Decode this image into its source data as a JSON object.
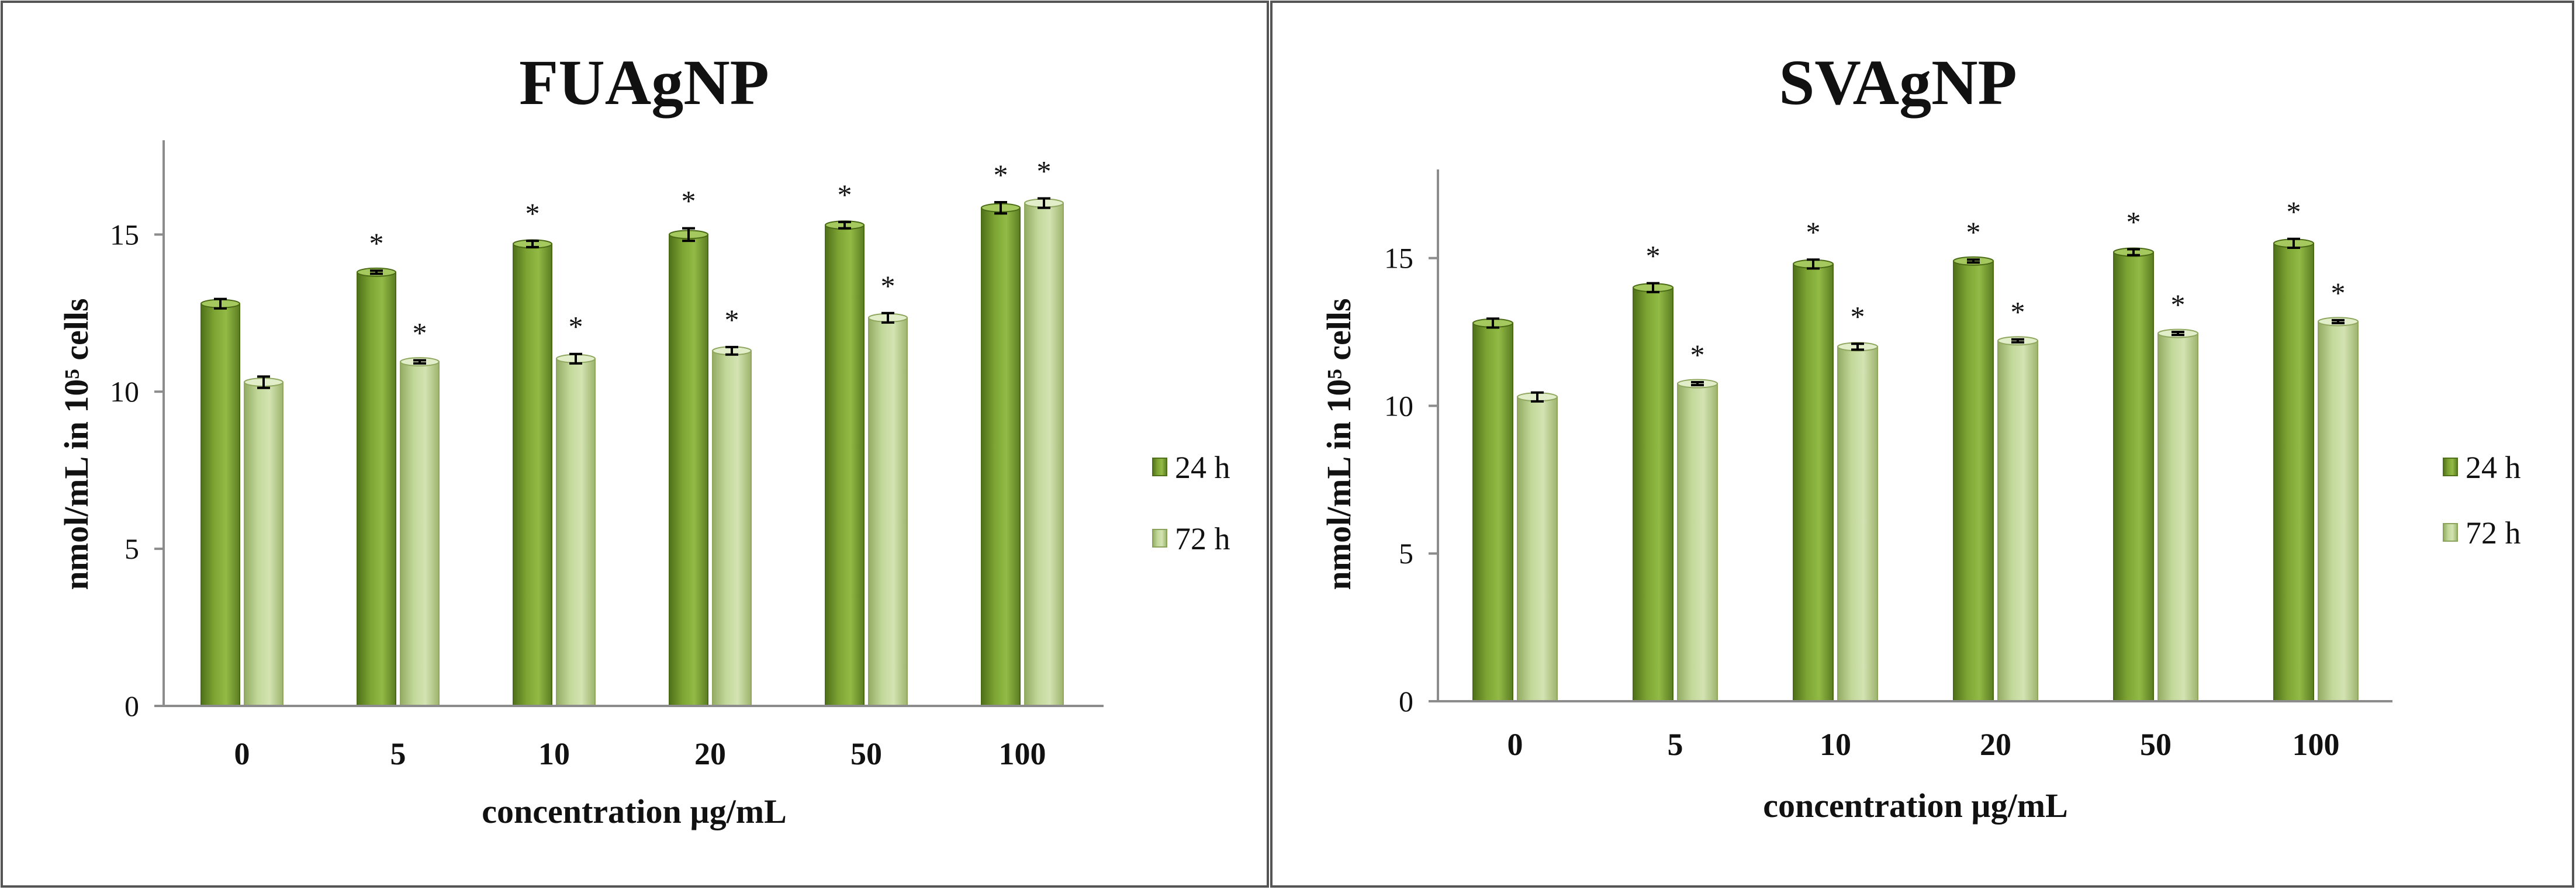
{
  "chart_data": [
    {
      "type": "bar",
      "title": "FUAgNP",
      "xlabel": "concentration µg/mL",
      "ylabel": "nmol/mL in 10⁵ cells",
      "categories": [
        "0",
        "5",
        "10",
        "20",
        "50",
        "100"
      ],
      "ylim": [
        0,
        18
      ],
      "yticks": [
        0,
        5,
        10,
        15
      ],
      "series": [
        {
          "name": "24 h",
          "values": [
            12.8,
            13.8,
            14.7,
            15.0,
            15.3,
            15.85
          ],
          "errors": [
            0.15,
            0.05,
            0.1,
            0.2,
            0.1,
            0.18
          ],
          "significance": [
            "",
            "*",
            "*",
            "*",
            "*",
            "*"
          ],
          "color": "#7fa437"
        },
        {
          "name": "72 h",
          "values": [
            10.3,
            10.95,
            11.05,
            11.3,
            12.35,
            16.0
          ],
          "errors": [
            0.18,
            0.05,
            0.15,
            0.12,
            0.15,
            0.15
          ],
          "significance": [
            "",
            "*",
            "*",
            "*",
            "*",
            "*"
          ],
          "color": "#b9cf8c"
        }
      ]
    },
    {
      "type": "bar",
      "title": "SVAgNP",
      "xlabel": "concentration µg/mL",
      "ylabel": "nmol/mL in 10⁵ cells",
      "categories": [
        "0",
        "5",
        "10",
        "20",
        "50",
        "100"
      ],
      "ylim": [
        0,
        18
      ],
      "yticks": [
        0,
        5,
        10,
        15
      ],
      "series": [
        {
          "name": "24 h",
          "values": [
            12.8,
            14.0,
            14.8,
            14.9,
            15.2,
            15.5
          ],
          "errors": [
            0.15,
            0.15,
            0.15,
            0.05,
            0.1,
            0.15
          ],
          "significance": [
            "",
            "*",
            "*",
            "*",
            "*",
            "*"
          ],
          "color": "#7fa437"
        },
        {
          "name": "72 h",
          "values": [
            10.3,
            10.75,
            12.0,
            12.2,
            12.45,
            12.85
          ],
          "errors": [
            0.15,
            0.05,
            0.1,
            0.05,
            0.05,
            0.05
          ],
          "significance": [
            "",
            "*",
            "*",
            "*",
            "*",
            "*"
          ],
          "color": "#b9cf8c"
        }
      ]
    }
  ]
}
